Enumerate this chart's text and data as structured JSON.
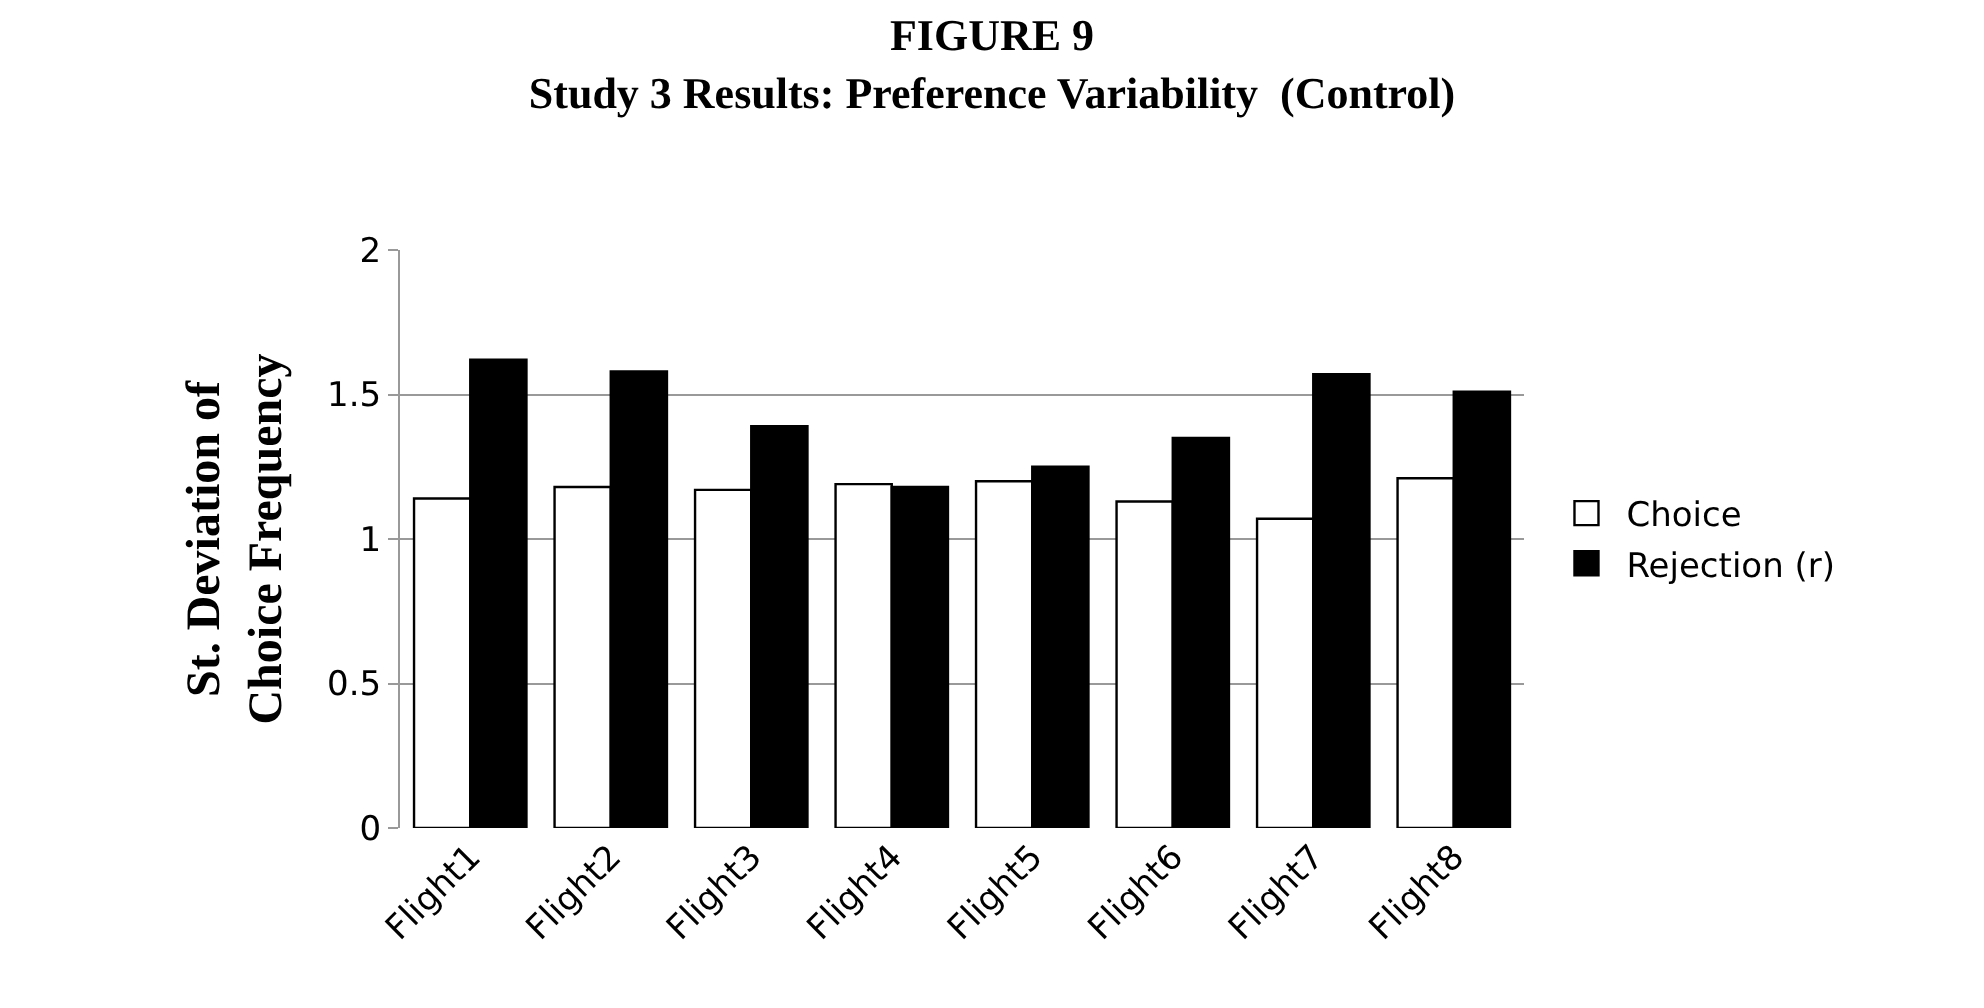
{
  "chart_data": {
    "type": "bar",
    "title": "FIGURE 9",
    "subtitle": "Study 3 Results: Preference Variability  (Control)",
    "ylabel": "St. Deviation of\nChoice Frequency",
    "categories": [
      "Flight1",
      "Flight2",
      "Flight3",
      "Flight4",
      "Flight5",
      "Flight6",
      "Flight7",
      "Flight8"
    ],
    "series": [
      {
        "name": "Choice",
        "color": "#ffffff",
        "values": [
          1.14,
          1.18,
          1.17,
          1.19,
          1.2,
          1.13,
          1.07,
          1.21
        ]
      },
      {
        "name": "Rejection (r)",
        "color": "#000000",
        "values": [
          1.62,
          1.58,
          1.39,
          1.18,
          1.25,
          1.35,
          1.57,
          1.51
        ]
      }
    ],
    "ylim": [
      0,
      2
    ],
    "yticks": [
      0,
      0.5,
      1,
      1.5,
      2
    ],
    "grid": "y",
    "legend": "right"
  }
}
